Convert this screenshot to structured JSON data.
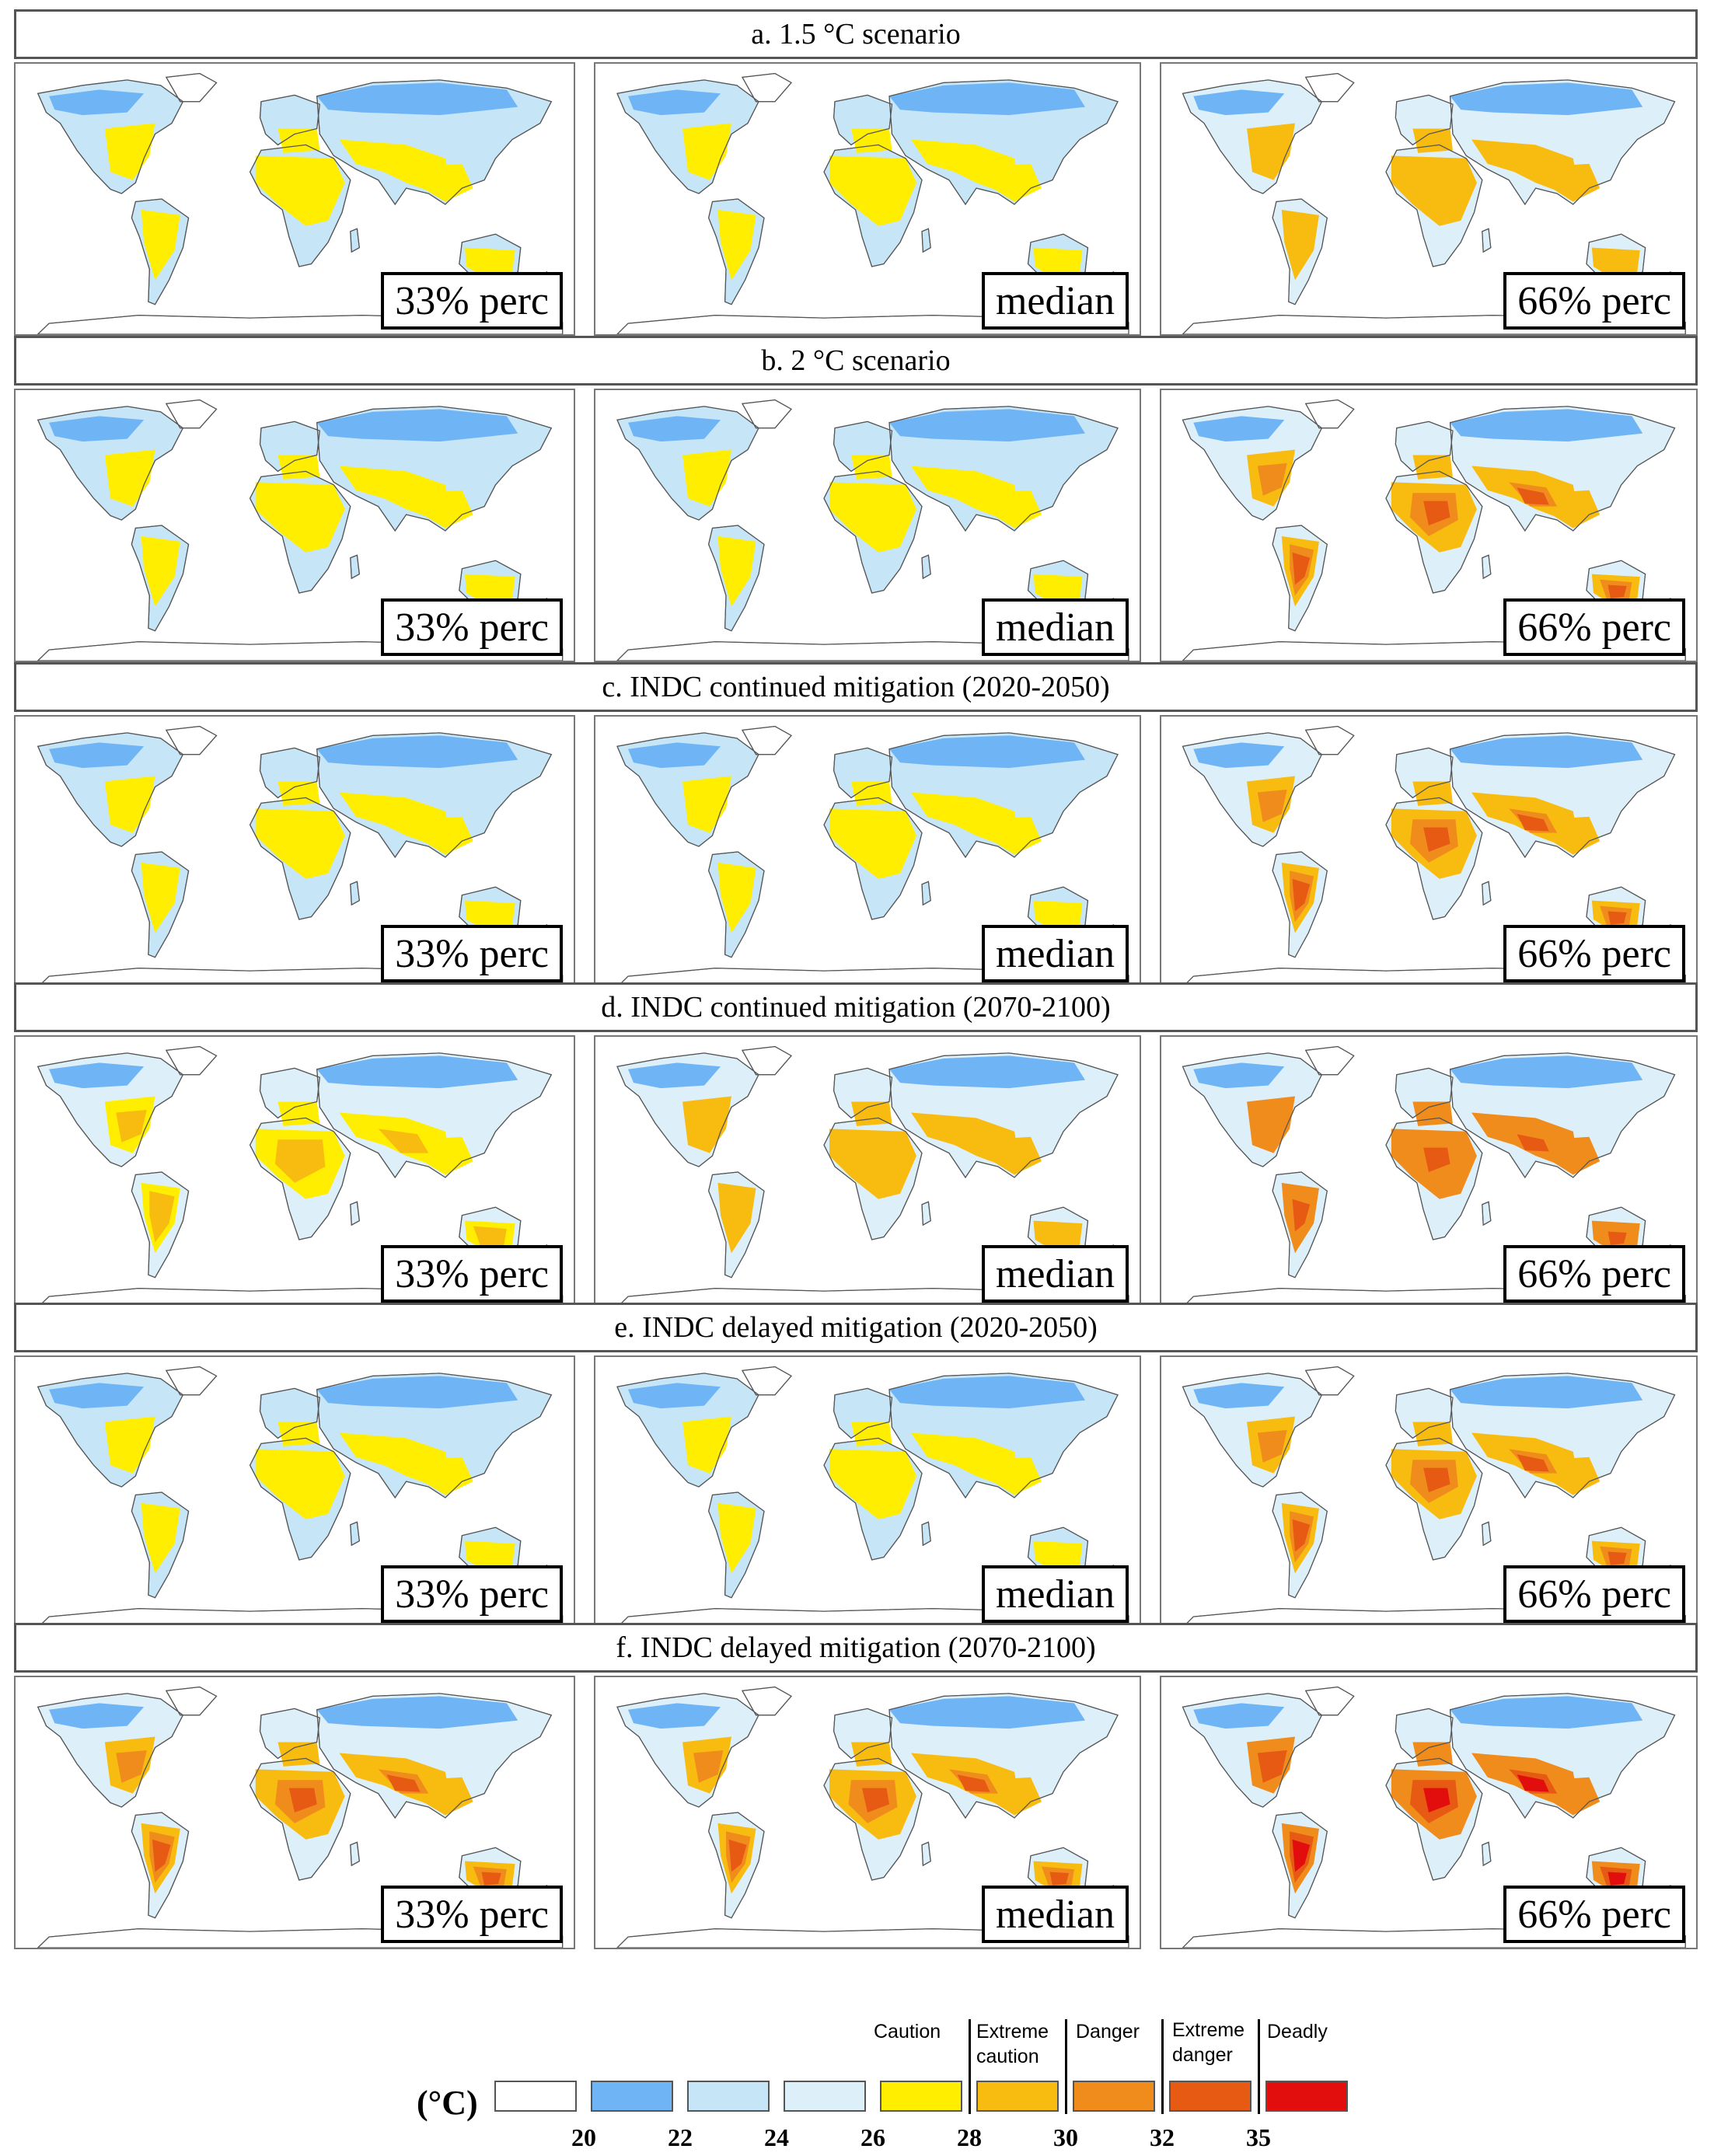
{
  "rows": [
    {
      "title": "a. 1.5 °C scenario",
      "panels": [
        {
          "label": "33% perc",
          "warmth": 0.15
        },
        {
          "label": "median",
          "warmth": 0.25
        },
        {
          "label": "66% perc",
          "warmth": 0.55
        }
      ]
    },
    {
      "title": "b. 2 °C scenario",
      "panels": [
        {
          "label": "33% perc",
          "warmth": 0.2
        },
        {
          "label": "median",
          "warmth": 0.35
        },
        {
          "label": "66% perc",
          "warmth": 0.65
        }
      ]
    },
    {
      "title": "c. INDC continued mitigation (2020-2050)",
      "panels": [
        {
          "label": "33% perc",
          "warmth": 0.2
        },
        {
          "label": "median",
          "warmth": 0.3
        },
        {
          "label": "66% perc",
          "warmth": 0.6
        }
      ]
    },
    {
      "title": "d. INDC continued mitigation (2070-2100)",
      "panels": [
        {
          "label": "33% perc",
          "warmth": 0.45
        },
        {
          "label": "median",
          "warmth": 0.5
        },
        {
          "label": "66% perc",
          "warmth": 0.75
        }
      ]
    },
    {
      "title": "e. INDC delayed mitigation (2020-2050)",
      "panels": [
        {
          "label": "33% perc",
          "warmth": 0.2
        },
        {
          "label": "median",
          "warmth": 0.3
        },
        {
          "label": "66% perc",
          "warmth": 0.6
        }
      ]
    },
    {
      "title": "f. INDC delayed mitigation (2070-2100)",
      "panels": [
        {
          "label": "33% perc",
          "warmth": 0.6
        },
        {
          "label": "median",
          "warmth": 0.7
        },
        {
          "label": "66% perc",
          "warmth": 0.9
        }
      ]
    }
  ],
  "legend": {
    "unit": "(°C)",
    "bins": [
      {
        "color": "#ffffff"
      },
      {
        "color": "#6fb4f4"
      },
      {
        "color": "#c6e6f8"
      },
      {
        "color": "#ddf0fa"
      },
      {
        "color": "#ffee00"
      },
      {
        "color": "#f8bb10"
      },
      {
        "color": "#f08c1c"
      },
      {
        "color": "#e65a14"
      },
      {
        "color": "#e20e0e"
      }
    ],
    "ticks": [
      "20",
      "22",
      "24",
      "26",
      "28",
      "30",
      "32",
      "35"
    ],
    "categories": [
      {
        "text": "Caution"
      },
      {
        "text": "Extreme\ncaution"
      },
      {
        "text": "Danger"
      },
      {
        "text": "Extreme\ndanger"
      },
      {
        "text": "Deadly"
      }
    ]
  }
}
